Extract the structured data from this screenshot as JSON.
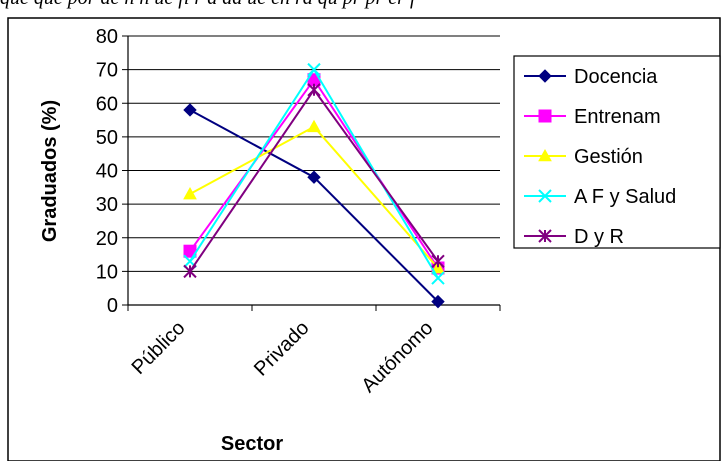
{
  "header_text": "que que por de n n ue fi  r a ad ue en   ra qu  pr pr  er f",
  "chart_data": {
    "type": "line",
    "categories": [
      "Público",
      "Privado",
      "Autónomo"
    ],
    "xlabel": "Sector",
    "ylabel": "Graduados (%)",
    "ylim": [
      0,
      80
    ],
    "yticks": [
      0,
      10,
      20,
      30,
      40,
      50,
      60,
      70,
      80
    ],
    "grid": true,
    "legend_position": "right",
    "series": [
      {
        "name": "Docencia",
        "values": [
          58,
          38,
          1
        ],
        "color": "#000080",
        "marker": "diamond"
      },
      {
        "name": "Entrenam",
        "values": [
          16,
          67,
          11
        ],
        "color": "#FF00FF",
        "marker": "square"
      },
      {
        "name": "Gestión",
        "values": [
          33,
          53,
          11
        ],
        "color": "#FFFF00",
        "marker": "triangle"
      },
      {
        "name": "A F y Salud",
        "values": [
          13,
          70,
          8
        ],
        "color": "#00FFFF",
        "marker": "x"
      },
      {
        "name": "D y R",
        "values": [
          10,
          64,
          13
        ],
        "color": "#800080",
        "marker": "star"
      }
    ]
  }
}
